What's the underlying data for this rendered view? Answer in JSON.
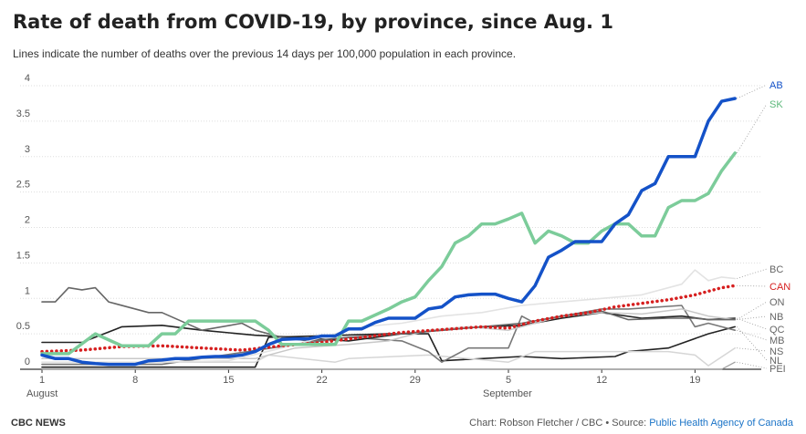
{
  "title": "Rate of death from COVID-19, by province, since Aug. 1",
  "subtitle": "Lines indicate the number of deaths over the previous 14 days per 100,000 population in each province.",
  "footer": {
    "brand": "CBC NEWS",
    "credit": "Chart: Robson Fletcher / CBC • Source: ",
    "source_link": "Public Health Agency of Canada"
  },
  "chart_data": {
    "type": "line",
    "x_day_ticks": [
      1,
      8,
      15,
      22,
      29,
      5,
      12,
      19
    ],
    "x_month_labels": [
      "August",
      "September"
    ],
    "x_range": [
      "Aug 1",
      "Sep 23"
    ],
    "ylim": [
      0,
      4
    ],
    "yticks": [
      "0",
      "0.5",
      "1",
      "1.5",
      "2",
      "2.5",
      "3",
      "3.5",
      "4"
    ],
    "grid": true,
    "series": [
      {
        "name": "PEI",
        "color": "#9e9e9e",
        "width": 1.2,
        "dash": "",
        "x": [
          1,
          10,
          20,
          30,
          40,
          52,
          53
        ],
        "y": [
          0,
          0,
          0,
          0,
          0,
          0,
          0.1
        ]
      },
      {
        "name": "NL",
        "color": "#222222",
        "width": 1.6,
        "dash": "",
        "x": [
          1,
          10,
          17,
          18,
          27,
          30,
          31,
          34,
          37,
          40,
          44,
          45,
          48,
          51,
          53
        ],
        "y": [
          0.03,
          0.03,
          0.03,
          0.45,
          0.5,
          0.5,
          0.12,
          0.15,
          0.18,
          0.15,
          0.18,
          0.25,
          0.3,
          0.5,
          0.6
        ]
      },
      {
        "name": "NS",
        "color": "#d6d6d6",
        "width": 1.5,
        "dash": "",
        "x": [
          1,
          10,
          17,
          18,
          23,
          24,
          30,
          33,
          36,
          38,
          43,
          46,
          48,
          50,
          51,
          53
        ],
        "y": [
          0.1,
          0.1,
          0.1,
          0.2,
          0.1,
          0.15,
          0.2,
          0.15,
          0.1,
          0.25,
          0.25,
          0.25,
          0.25,
          0.2,
          0.05,
          0.3
        ]
      },
      {
        "name": "MB",
        "color": "#777777",
        "width": 1.6,
        "dash": "",
        "x": [
          1,
          10,
          20,
          24,
          28,
          30,
          31,
          33,
          36,
          37,
          38,
          40,
          43,
          45,
          49,
          50,
          51,
          52,
          53
        ],
        "y": [
          0.07,
          0.07,
          0.35,
          0.45,
          0.4,
          0.25,
          0.1,
          0.3,
          0.3,
          0.75,
          0.65,
          0.75,
          0.85,
          0.85,
          0.9,
          0.6,
          0.65,
          0.6,
          0.55
        ]
      },
      {
        "name": "QC",
        "color": "#222222",
        "width": 1.6,
        "dash": "",
        "x": [
          1,
          4,
          7,
          10,
          13,
          17,
          20,
          24,
          28,
          31,
          34,
          37,
          40,
          43,
          46,
          49,
          51,
          53
        ],
        "y": [
          0.38,
          0.38,
          0.6,
          0.62,
          0.55,
          0.48,
          0.45,
          0.4,
          0.5,
          0.55,
          0.6,
          0.62,
          0.72,
          0.8,
          0.72,
          0.75,
          0.7,
          0.72
        ]
      },
      {
        "name": "NB",
        "color": "#c8c8c8",
        "width": 1.5,
        "dash": "",
        "x": [
          1,
          10,
          17,
          20,
          24,
          27,
          30,
          33,
          36,
          38,
          40,
          43,
          46,
          49,
          51,
          53
        ],
        "y": [
          0.15,
          0.15,
          0.15,
          0.3,
          0.35,
          0.4,
          0.55,
          0.6,
          0.55,
          0.65,
          0.75,
          0.8,
          0.78,
          0.85,
          0.75,
          0.7
        ]
      },
      {
        "name": "ON",
        "color": "#666666",
        "width": 1.6,
        "dash": "",
        "x": [
          1,
          2,
          3,
          4,
          5,
          6,
          9,
          10,
          13,
          16,
          17,
          19,
          21,
          24,
          28,
          31,
          34,
          37,
          40,
          43,
          45,
          48,
          50,
          51,
          53
        ],
        "y": [
          0.95,
          0.95,
          1.15,
          1.12,
          1.15,
          0.95,
          0.8,
          0.8,
          0.55,
          0.65,
          0.55,
          0.45,
          0.4,
          0.45,
          0.5,
          0.55,
          0.6,
          0.65,
          0.75,
          0.82,
          0.7,
          0.72,
          0.72,
          0.7,
          0.7
        ]
      },
      {
        "name": "BC",
        "color": "#e3e3e3",
        "width": 1.6,
        "dash": "",
        "x": [
          1,
          6,
          10,
          15,
          19,
          22,
          25,
          28,
          31,
          34,
          37,
          40,
          43,
          46,
          49,
          50,
          51,
          52,
          53
        ],
        "y": [
          0.1,
          0.1,
          0.1,
          0.12,
          0.3,
          0.45,
          0.6,
          0.65,
          0.75,
          0.8,
          0.9,
          0.95,
          1.0,
          1.05,
          1.2,
          1.4,
          1.25,
          1.3,
          1.28
        ]
      },
      {
        "name": "CAN",
        "color": "#d61f1f",
        "width": 3.5,
        "dash": "0.1 5.2",
        "x": [
          1,
          4,
          7,
          10,
          13,
          16,
          19,
          22,
          25,
          28,
          31,
          34,
          36,
          38,
          40,
          42,
          44,
          46,
          48,
          50,
          52,
          53
        ],
        "y": [
          0.25,
          0.27,
          0.32,
          0.33,
          0.3,
          0.27,
          0.33,
          0.38,
          0.45,
          0.52,
          0.56,
          0.6,
          0.58,
          0.68,
          0.75,
          0.8,
          0.88,
          0.93,
          0.98,
          1.05,
          1.15,
          1.18
        ]
      },
      {
        "name": "SK",
        "color": "#7ccc9a",
        "width": 3.5,
        "dash": "",
        "x": [
          1,
          3,
          5,
          7,
          9,
          10,
          11,
          12,
          17,
          18,
          19,
          23,
          24,
          25,
          27,
          28,
          29,
          30,
          31,
          32,
          33,
          34,
          35,
          36,
          37,
          38,
          39,
          40,
          41,
          42,
          43,
          44,
          45,
          46,
          47,
          48,
          49,
          50,
          51,
          52,
          53
        ],
        "y": [
          0.22,
          0.22,
          0.5,
          0.33,
          0.33,
          0.5,
          0.5,
          0.68,
          0.68,
          0.55,
          0.35,
          0.35,
          0.68,
          0.68,
          0.85,
          0.95,
          1.02,
          1.25,
          1.45,
          1.78,
          1.88,
          2.05,
          2.05,
          2.12,
          2.2,
          1.78,
          1.95,
          1.88,
          1.78,
          1.78,
          1.95,
          2.05,
          2.05,
          1.88,
          1.88,
          2.28,
          2.38,
          2.38,
          2.48,
          2.8,
          3.05
        ]
      },
      {
        "name": "AB",
        "color": "#1452c8",
        "width": 3.5,
        "dash": "",
        "x": [
          1,
          2,
          3,
          4,
          5,
          6,
          7,
          8,
          9,
          10,
          11,
          12,
          13,
          14,
          15,
          16,
          17,
          18,
          19,
          20,
          21,
          22,
          23,
          24,
          25,
          26,
          27,
          28,
          29,
          30,
          31,
          32,
          33,
          34,
          35,
          36,
          37,
          38,
          39,
          40,
          41,
          42,
          43,
          44,
          45,
          46,
          47,
          48,
          49,
          50,
          51,
          52,
          53
        ],
        "y": [
          0.2,
          0.15,
          0.15,
          0.1,
          0.08,
          0.07,
          0.07,
          0.07,
          0.12,
          0.13,
          0.15,
          0.15,
          0.17,
          0.18,
          0.18,
          0.2,
          0.25,
          0.35,
          0.42,
          0.43,
          0.43,
          0.47,
          0.47,
          0.57,
          0.57,
          0.66,
          0.72,
          0.72,
          0.72,
          0.85,
          0.88,
          1.02,
          1.05,
          1.06,
          1.06,
          1.0,
          0.95,
          1.18,
          1.58,
          1.68,
          1.8,
          1.8,
          1.8,
          2.05,
          2.18,
          2.52,
          2.62,
          3.0,
          3.0,
          3.0,
          3.5,
          3.78,
          3.82
        ]
      }
    ]
  }
}
